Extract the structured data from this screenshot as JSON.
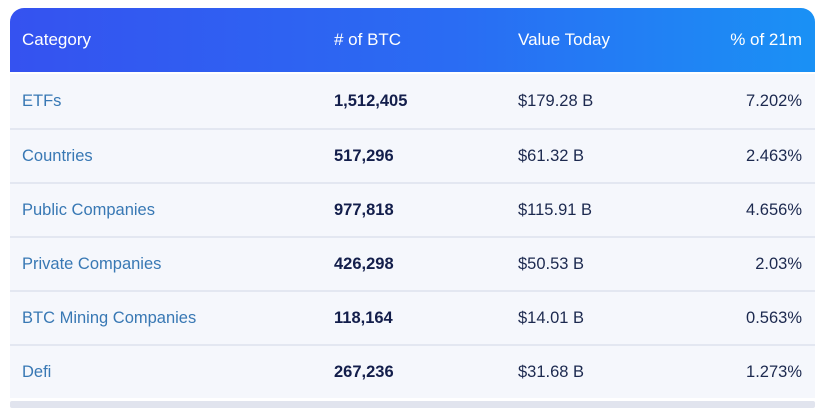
{
  "table": {
    "header": {
      "background_gradient": [
        "#3552f0",
        "#1a91f5"
      ],
      "text_color": "#ffffff",
      "columns": [
        {
          "label": "Category"
        },
        {
          "label": "# of BTC"
        },
        {
          "label": "Value Today"
        },
        {
          "label": "% of 21m"
        }
      ]
    },
    "rows": [
      {
        "category": "ETFs",
        "btc": "1,512,405",
        "value_today": "$179.28 B",
        "pct_of_21m": "7.202%"
      },
      {
        "category": "Countries",
        "btc": "517,296",
        "value_today": "$61.32 B",
        "pct_of_21m": "2.463%"
      },
      {
        "category": "Public Companies",
        "btc": "977,818",
        "value_today": "$115.91 B",
        "pct_of_21m": "4.656%"
      },
      {
        "category": "Private Companies",
        "btc": "426,298",
        "value_today": "$50.53 B",
        "pct_of_21m": "2.03%"
      },
      {
        "category": "BTC Mining Companies",
        "btc": "118,164",
        "value_today": "$14.01 B",
        "pct_of_21m": "0.563%"
      },
      {
        "category": "Defi",
        "btc": "267,236",
        "value_today": "$31.68 B",
        "pct_of_21m": "1.273%"
      }
    ],
    "colors": {
      "row_background": "#f5f7fc",
      "separator": "#e3e7f1",
      "category_link": "#3878b4",
      "btc_number_text": "#131e4b",
      "value_text": "#1c294f",
      "next_row_strip": "#e1e4ee"
    }
  },
  "chart_data": {
    "type": "table",
    "columns": [
      "Category",
      "# of BTC",
      "Value Today",
      "% of 21m"
    ],
    "rows": [
      [
        "ETFs",
        "1,512,405",
        "$179.28 B",
        "7.202%"
      ],
      [
        "Countries",
        "517,296",
        "$61.32 B",
        "2.463%"
      ],
      [
        "Public Companies",
        "977,818",
        "$115.91 B",
        "4.656%"
      ],
      [
        "Private Companies",
        "426,298",
        "$50.53 B",
        "2.03%"
      ],
      [
        "BTC Mining Companies",
        "118,164",
        "$14.01 B",
        "0.563%"
      ],
      [
        "Defi",
        "267,236",
        "$31.68 B",
        "1.273%"
      ]
    ]
  }
}
